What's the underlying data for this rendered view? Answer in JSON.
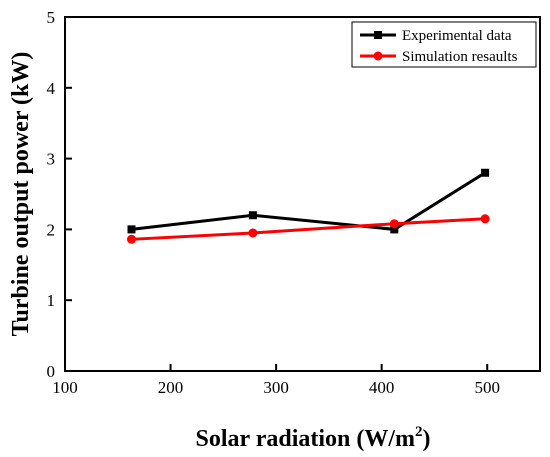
{
  "chart_data": {
    "type": "line",
    "xlabel": "Solar radiation (W/m",
    "xlabel_sup": "2",
    "xlabel_end": ")",
    "ylabel": "Turbine output power (kW)",
    "xlim": [
      100,
      550
    ],
    "ylim": [
      0,
      5
    ],
    "xticks": [
      100,
      200,
      300,
      400,
      500
    ],
    "yticks": [
      0,
      1,
      2,
      3,
      4,
      5
    ],
    "legend_placement": "top-right",
    "grid": false,
    "series": [
      {
        "name": "Experimental data",
        "color": "#000000",
        "marker": "square",
        "x": [
          163,
          278,
          412,
          498
        ],
        "y": [
          2.0,
          2.2,
          2.0,
          2.8
        ]
      },
      {
        "name": "Simulation resaults",
        "color": "#ff0000",
        "marker": "circle",
        "x": [
          163,
          278,
          412,
          498
        ],
        "y": [
          1.86,
          1.95,
          2.08,
          2.15
        ]
      }
    ]
  }
}
